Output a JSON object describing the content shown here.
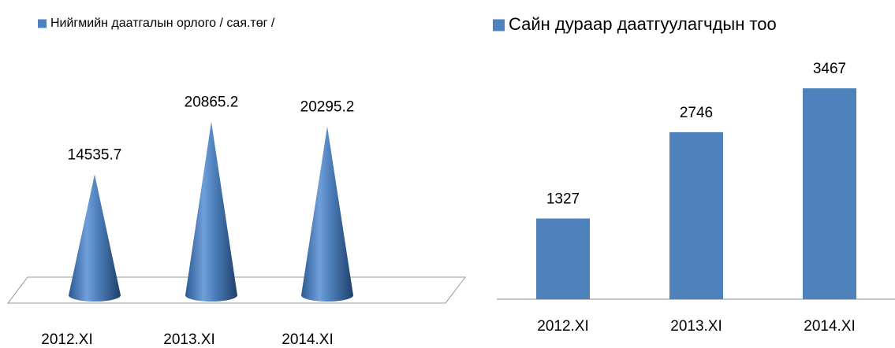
{
  "chart_data": [
    {
      "type": "cone",
      "categories": [
        "2012.XI",
        "2013.XI",
        "2014.XI"
      ],
      "series": [
        {
          "name": "Нийгмийн даатгалын орлого / сая.төг /",
          "color": "#4f81bd",
          "values": [
            14535.7,
            20865.2,
            20295.2
          ]
        }
      ],
      "ylim": [
        0,
        25000
      ]
    },
    {
      "type": "bar",
      "categories": [
        "2012.XI",
        "2013.XI",
        "2014.XI"
      ],
      "series": [
        {
          "name": "Сайн дураар даатгуулагчдын тоо",
          "color": "#4f81bd",
          "values": [
            1327,
            2746,
            3467
          ]
        }
      ],
      "ylim": [
        0,
        4000
      ]
    }
  ]
}
